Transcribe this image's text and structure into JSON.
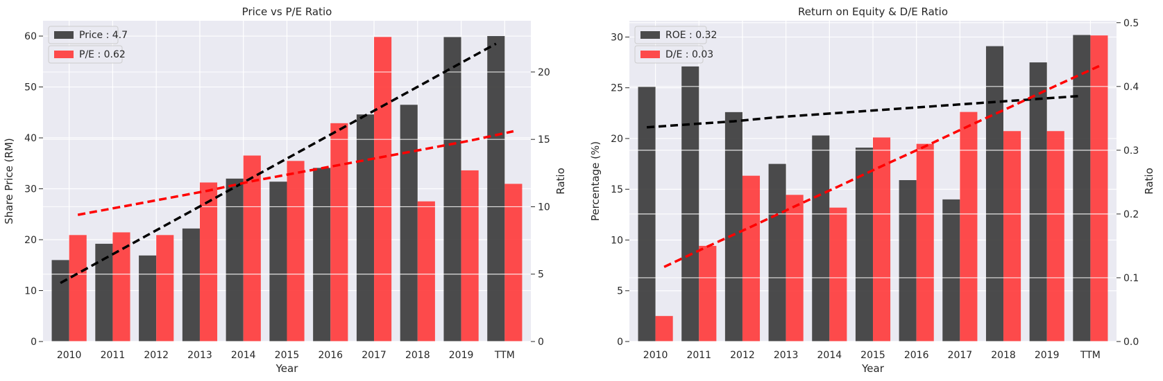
{
  "chart_data": [
    {
      "type": "bar",
      "title": "Price vs P/E Ratio",
      "xlabel": "Year",
      "ylabel": "Share Price (RM)",
      "ylabel_right": "Ratio",
      "categories": [
        "2010",
        "2011",
        "2012",
        "2013",
        "2014",
        "2015",
        "2016",
        "2017",
        "2018",
        "2019",
        "TTM"
      ],
      "ylim": [
        0,
        63
      ],
      "y_ticks": [
        0,
        10,
        20,
        30,
        40,
        50,
        60
      ],
      "ylim_right": [
        0,
        23.8
      ],
      "y_ticks_right": [
        0,
        5,
        10,
        15,
        20
      ],
      "grid": true,
      "legend_position": "top-left",
      "series": [
        {
          "name": "Price : 4.7",
          "axis": "left",
          "color": "#333333",
          "values": [
            16.0,
            19.2,
            16.9,
            22.2,
            32.0,
            31.4,
            34.1,
            44.6,
            46.5,
            59.8,
            60.0
          ],
          "trend": [
            11.5,
            16.2,
            20.9,
            25.6,
            30.3,
            35.0,
            39.7,
            44.4,
            49.1,
            53.8,
            58.5
          ]
        },
        {
          "name": "P/E : 0.62",
          "axis": "right",
          "color": "#ff3333",
          "values": [
            7.9,
            8.1,
            7.9,
            11.8,
            13.8,
            13.4,
            16.2,
            22.6,
            10.4,
            12.7,
            11.7
          ],
          "trend": [
            9.4,
            10.0,
            10.6,
            11.2,
            11.9,
            12.5,
            13.1,
            13.7,
            14.3,
            14.9,
            15.6
          ]
        }
      ]
    },
    {
      "type": "bar",
      "title": "Return on Equity & D/E Ratio",
      "xlabel": "Year",
      "ylabel": "Percentage (%)",
      "ylabel_right": "Ratio",
      "categories": [
        "2010",
        "2011",
        "2012",
        "2013",
        "2014",
        "2015",
        "2016",
        "2017",
        "2018",
        "2019",
        "TTM"
      ],
      "ylim": [
        0,
        31.6
      ],
      "y_ticks": [
        0,
        5,
        10,
        15,
        20,
        25,
        30
      ],
      "ylim_right": [
        0,
        0.503
      ],
      "y_ticks_right": [
        0.0,
        0.1,
        0.2,
        0.3,
        0.4,
        0.5
      ],
      "grid": true,
      "legend_position": "top-left",
      "series": [
        {
          "name": "ROE : 0.32",
          "axis": "left",
          "color": "#333333",
          "values": [
            25.1,
            27.1,
            22.6,
            17.5,
            20.3,
            19.1,
            15.9,
            14.0,
            29.1,
            27.5,
            30.2
          ],
          "trend": [
            21.1,
            21.4,
            21.7,
            22.1,
            22.4,
            22.7,
            23.0,
            23.3,
            23.6,
            23.9,
            24.2
          ]
        },
        {
          "name": "D/E : 0.03",
          "axis": "right",
          "color": "#ff3333",
          "values": [
            0.04,
            0.15,
            0.26,
            0.23,
            0.21,
            0.32,
            0.31,
            0.36,
            0.33,
            0.33,
            0.48
          ],
          "trend": [
            0.117,
            0.149,
            0.18,
            0.212,
            0.243,
            0.275,
            0.306,
            0.338,
            0.369,
            0.401,
            0.432
          ]
        }
      ]
    }
  ]
}
